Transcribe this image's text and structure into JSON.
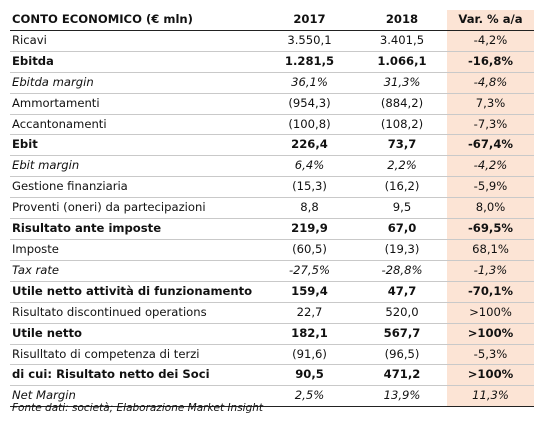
{
  "table": {
    "headers": [
      "CONTO ECONOMICO (€ mln)",
      "2017",
      "2018",
      "Var. % a/a"
    ],
    "rows": [
      {
        "label": "Ricavi",
        "v2017": "3.550,1",
        "v2018": "3.401,5",
        "var": "-4,2%",
        "style": "normal"
      },
      {
        "label": "Ebitda",
        "v2017": "1.281,5",
        "v2018": "1.066,1",
        "var": "-16,8%",
        "style": "bold"
      },
      {
        "label": "Ebitda margin",
        "v2017": "36,1%",
        "v2018": "31,3%",
        "var": "-4,8%",
        "style": "italic"
      },
      {
        "label": "Ammortamenti",
        "v2017": "(954,3)",
        "v2018": "(884,2)",
        "var": "7,3%",
        "style": "normal"
      },
      {
        "label": "Accantonamenti",
        "v2017": "(100,8)",
        "v2018": "(108,2)",
        "var": "-7,3%",
        "style": "normal"
      },
      {
        "label": "Ebit",
        "v2017": "226,4",
        "v2018": "73,7",
        "var": "-67,4%",
        "style": "bold"
      },
      {
        "label": "Ebit margin",
        "v2017": "6,4%",
        "v2018": "2,2%",
        "var": "-4,2%",
        "style": "italic"
      },
      {
        "label": "Gestione finanziaria",
        "v2017": "(15,3)",
        "v2018": "(16,2)",
        "var": "-5,9%",
        "style": "normal"
      },
      {
        "label": "Proventi (oneri) da partecipazioni",
        "v2017": "8,8",
        "v2018": "9,5",
        "var": "8,0%",
        "style": "normal"
      },
      {
        "label": "Risultato ante imposte",
        "v2017": "219,9",
        "v2018": "67,0",
        "var": "-69,5%",
        "style": "bold"
      },
      {
        "label": "Imposte",
        "v2017": "(60,5)",
        "v2018": "(19,3)",
        "var": "68,1%",
        "style": "normal"
      },
      {
        "label": "Tax rate",
        "v2017": "-27,5%",
        "v2018": "-28,8%",
        "var": "-1,3%",
        "style": "italic"
      },
      {
        "label": "Utile netto attività di funzionamento",
        "v2017": "159,4",
        "v2018": "47,7",
        "var": "-70,1%",
        "style": "bold"
      },
      {
        "label": "Risultato discontinued operations",
        "v2017": "22,7",
        "v2018": "520,0",
        "var": ">100%",
        "style": "normal"
      },
      {
        "label": "Utile netto",
        "v2017": "182,1",
        "v2018": "567,7",
        "var": ">100%",
        "style": "bold"
      },
      {
        "label": "Risulltato di competenza di terzi",
        "v2017": "(91,6)",
        "v2018": "(96,5)",
        "var": "-5,3%",
        "style": "normal"
      },
      {
        "label": "di cui: Risultato netto dei Soci",
        "v2017": "90,5",
        "v2018": "471,2",
        "var": ">100%",
        "style": "bold"
      },
      {
        "label": "Net Margin",
        "v2017": "2,5%",
        "v2018": "13,9%",
        "var": "11,3%",
        "style": "italic"
      }
    ]
  },
  "source": "Fonte dati: società; Elaborazione Market Insight",
  "colors": {
    "highlight_column": "#fce4d5",
    "rule": "#222222"
  }
}
